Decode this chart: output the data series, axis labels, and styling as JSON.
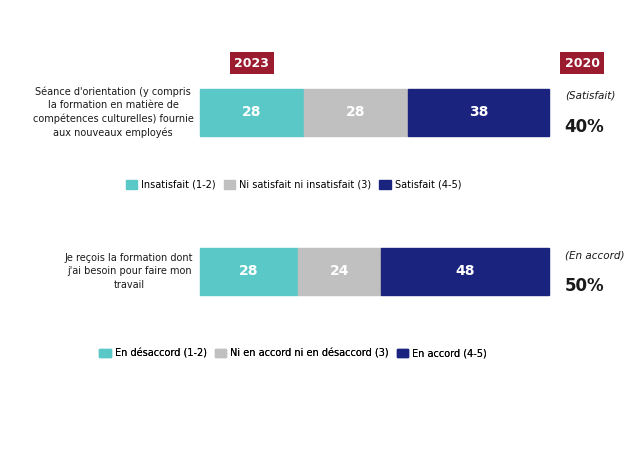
{
  "chart1": {
    "label": "Séance d'orientation (y compris\nla formation en matière de\ncompétences culturelles) fournie\naux nouveaux employés",
    "values": [
      28,
      28,
      38
    ],
    "colors": [
      "#5BC8C8",
      "#C0C0C0",
      "#1A237E"
    ],
    "legend_labels": [
      "Insatisfait (1-2)",
      "Ni satisfait ni insatisfait (3)",
      "Satisfait (4-5)"
    ],
    "year2020_value": "(Satisfait)",
    "year2020_pct": "40%"
  },
  "chart2": {
    "label": "Je reçois la formation dont\nj'ai besoin pour faire mon\ntravail",
    "values": [
      28,
      24,
      48
    ],
    "colors": [
      "#5BC8C8",
      "#C0C0C0",
      "#1A237E"
    ],
    "legend_labels": [
      "En désaccord (1-2)",
      "Ni en accord ni en désaccord (3)",
      "En accord (4-5)"
    ],
    "year2020_value": "(En accord)",
    "year2020_pct": "50%"
  },
  "label_color": "#FFFFFF",
  "label_fontsize": 10,
  "background_color": "#FFFFFF",
  "year_box_color": "#9B1C2E",
  "year_text_color": "#FFFFFF",
  "text_color": "#1A1A1A"
}
